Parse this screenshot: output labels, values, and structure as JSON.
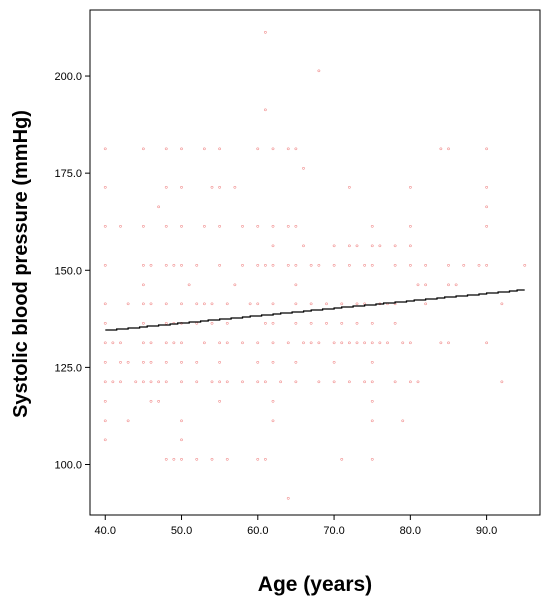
{
  "chart_data": {
    "type": "scatter",
    "title": "",
    "xlabel": "Age (years)",
    "ylabel": "Systolic blood pressure (mmHg)",
    "xlim": [
      38,
      97
    ],
    "ylim": [
      87,
      217
    ],
    "x_ticks": [
      40,
      50,
      60,
      70,
      80,
      90
    ],
    "x_tick_labels": [
      "40.0",
      "50.0",
      "60.0",
      "70.0",
      "80.0",
      "90.0"
    ],
    "y_ticks": [
      100,
      125,
      150,
      175,
      200
    ],
    "y_tick_labels": [
      "100.0",
      "125.0",
      "150.0",
      "175.0",
      "200.0"
    ],
    "grid": false,
    "marker_glyph": "°",
    "colors": {
      "points": "#f08a8a",
      "fit_line": "#000000",
      "axis": "#000000"
    },
    "fit_line": {
      "x": [
        40,
        95
      ],
      "y": [
        134.5,
        145
      ]
    },
    "points": [
      [
        61,
        211
      ],
      [
        68,
        201
      ],
      [
        61,
        191
      ],
      [
        64,
        91
      ],
      [
        40,
        181
      ],
      [
        45,
        181
      ],
      [
        48,
        181
      ],
      [
        50,
        181
      ],
      [
        53,
        181
      ],
      [
        55,
        181
      ],
      [
        60,
        181
      ],
      [
        62,
        181
      ],
      [
        64,
        181
      ],
      [
        65,
        181
      ],
      [
        84,
        181
      ],
      [
        85,
        181
      ],
      [
        90,
        181
      ],
      [
        66,
        176
      ],
      [
        40,
        171
      ],
      [
        48,
        171
      ],
      [
        50,
        171
      ],
      [
        54,
        171
      ],
      [
        55,
        171
      ],
      [
        57,
        171
      ],
      [
        72,
        171
      ],
      [
        80,
        171
      ],
      [
        90,
        171
      ],
      [
        47,
        166
      ],
      [
        90,
        166
      ],
      [
        40,
        161
      ],
      [
        42,
        161
      ],
      [
        45,
        161
      ],
      [
        48,
        161
      ],
      [
        50,
        161
      ],
      [
        53,
        161
      ],
      [
        55,
        161
      ],
      [
        58,
        161
      ],
      [
        60,
        161
      ],
      [
        62,
        161
      ],
      [
        64,
        161
      ],
      [
        65,
        161
      ],
      [
        75,
        161
      ],
      [
        80,
        161
      ],
      [
        90,
        161
      ],
      [
        62,
        156
      ],
      [
        66,
        156
      ],
      [
        70,
        156
      ],
      [
        72,
        156
      ],
      [
        73,
        156
      ],
      [
        75,
        156
      ],
      [
        76,
        156
      ],
      [
        78,
        156
      ],
      [
        80,
        156
      ],
      [
        40,
        151
      ],
      [
        45,
        151
      ],
      [
        46,
        151
      ],
      [
        48,
        151
      ],
      [
        49,
        151
      ],
      [
        50,
        151
      ],
      [
        52,
        151
      ],
      [
        55,
        151
      ],
      [
        58,
        151
      ],
      [
        60,
        151
      ],
      [
        61,
        151
      ],
      [
        62,
        151
      ],
      [
        64,
        151
      ],
      [
        65,
        151
      ],
      [
        67,
        151
      ],
      [
        68,
        151
      ],
      [
        70,
        151
      ],
      [
        72,
        151
      ],
      [
        74,
        151
      ],
      [
        75,
        151
      ],
      [
        78,
        151
      ],
      [
        80,
        151
      ],
      [
        82,
        151
      ],
      [
        85,
        151
      ],
      [
        87,
        151
      ],
      [
        89,
        151
      ],
      [
        90,
        151
      ],
      [
        95,
        151
      ],
      [
        45,
        146
      ],
      [
        51,
        146
      ],
      [
        57,
        146
      ],
      [
        65,
        146
      ],
      [
        81,
        146
      ],
      [
        82,
        146
      ],
      [
        85,
        146
      ],
      [
        86,
        146
      ],
      [
        40,
        141
      ],
      [
        43,
        141
      ],
      [
        45,
        141
      ],
      [
        46,
        141
      ],
      [
        48,
        141
      ],
      [
        50,
        141
      ],
      [
        52,
        141
      ],
      [
        53,
        141
      ],
      [
        54,
        141
      ],
      [
        56,
        141
      ],
      [
        59,
        141
      ],
      [
        60,
        141
      ],
      [
        62,
        141
      ],
      [
        65,
        141
      ],
      [
        67,
        141
      ],
      [
        69,
        141
      ],
      [
        71,
        141
      ],
      [
        73,
        141
      ],
      [
        74,
        141
      ],
      [
        76,
        141
      ],
      [
        77,
        141
      ],
      [
        78,
        141
      ],
      [
        82,
        141
      ],
      [
        92,
        141
      ],
      [
        40,
        136
      ],
      [
        45,
        136
      ],
      [
        48,
        136
      ],
      [
        49,
        136
      ],
      [
        50,
        136
      ],
      [
        52,
        136
      ],
      [
        54,
        136
      ],
      [
        56,
        136
      ],
      [
        61,
        136
      ],
      [
        62,
        136
      ],
      [
        65,
        136
      ],
      [
        67,
        136
      ],
      [
        69,
        136
      ],
      [
        71,
        136
      ],
      [
        73,
        136
      ],
      [
        75,
        136
      ],
      [
        78,
        136
      ],
      [
        40,
        131
      ],
      [
        41,
        131
      ],
      [
        42,
        131
      ],
      [
        45,
        131
      ],
      [
        46,
        131
      ],
      [
        48,
        131
      ],
      [
        49,
        131
      ],
      [
        50,
        131
      ],
      [
        53,
        131
      ],
      [
        55,
        131
      ],
      [
        56,
        131
      ],
      [
        58,
        131
      ],
      [
        60,
        131
      ],
      [
        62,
        131
      ],
      [
        64,
        131
      ],
      [
        66,
        131
      ],
      [
        67,
        131
      ],
      [
        68,
        131
      ],
      [
        70,
        131
      ],
      [
        71,
        131
      ],
      [
        72,
        131
      ],
      [
        73,
        131
      ],
      [
        74,
        131
      ],
      [
        75,
        131
      ],
      [
        76,
        131
      ],
      [
        77,
        131
      ],
      [
        79,
        131
      ],
      [
        80,
        131
      ],
      [
        84,
        131
      ],
      [
        85,
        131
      ],
      [
        90,
        131
      ],
      [
        40,
        126
      ],
      [
        42,
        126
      ],
      [
        43,
        126
      ],
      [
        45,
        126
      ],
      [
        46,
        126
      ],
      [
        48,
        126
      ],
      [
        50,
        126
      ],
      [
        52,
        126
      ],
      [
        55,
        126
      ],
      [
        60,
        126
      ],
      [
        62,
        126
      ],
      [
        65,
        126
      ],
      [
        70,
        126
      ],
      [
        75,
        126
      ],
      [
        40,
        121
      ],
      [
        41,
        121
      ],
      [
        42,
        121
      ],
      [
        44,
        121
      ],
      [
        45,
        121
      ],
      [
        46,
        121
      ],
      [
        47,
        121
      ],
      [
        48,
        121
      ],
      [
        50,
        121
      ],
      [
        52,
        121
      ],
      [
        54,
        121
      ],
      [
        55,
        121
      ],
      [
        56,
        121
      ],
      [
        58,
        121
      ],
      [
        60,
        121
      ],
      [
        61,
        121
      ],
      [
        63,
        121
      ],
      [
        65,
        121
      ],
      [
        68,
        121
      ],
      [
        70,
        121
      ],
      [
        72,
        121
      ],
      [
        74,
        121
      ],
      [
        75,
        121
      ],
      [
        78,
        121
      ],
      [
        80,
        121
      ],
      [
        81,
        121
      ],
      [
        92,
        121
      ],
      [
        40,
        116
      ],
      [
        46,
        116
      ],
      [
        47,
        116
      ],
      [
        55,
        116
      ],
      [
        62,
        116
      ],
      [
        75,
        116
      ],
      [
        40,
        111
      ],
      [
        43,
        111
      ],
      [
        50,
        111
      ],
      [
        62,
        111
      ],
      [
        75,
        111
      ],
      [
        79,
        111
      ],
      [
        40,
        106
      ],
      [
        50,
        106
      ],
      [
        48,
        101
      ],
      [
        49,
        101
      ],
      [
        50,
        101
      ],
      [
        52,
        101
      ],
      [
        54,
        101
      ],
      [
        56,
        101
      ],
      [
        60,
        101
      ],
      [
        61,
        101
      ],
      [
        71,
        101
      ],
      [
        75,
        101
      ]
    ]
  }
}
